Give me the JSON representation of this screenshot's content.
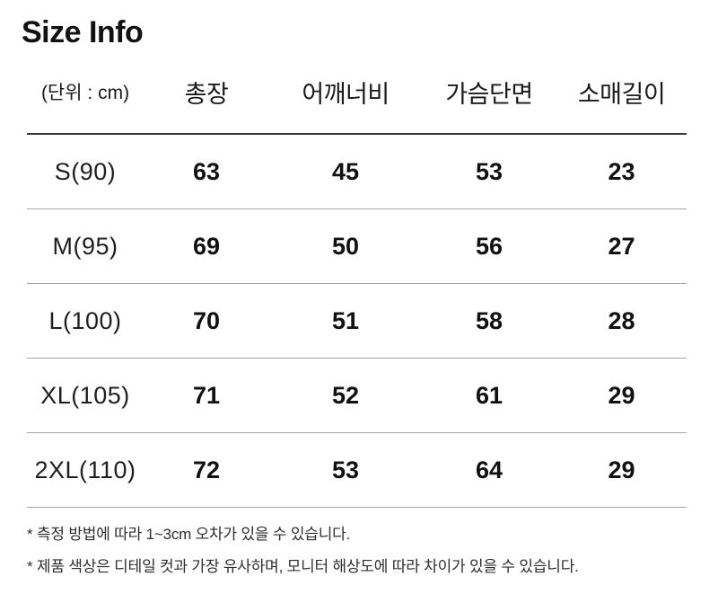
{
  "page": {
    "title": "Size Info"
  },
  "table": {
    "unit_label": "(단위 : cm)",
    "columns": [
      "총장",
      "어깨너비",
      "가슴단면",
      "소매길이"
    ],
    "rows": [
      {
        "size": "S(90)",
        "values": [
          "63",
          "45",
          "53",
          "23"
        ]
      },
      {
        "size": "M(95)",
        "values": [
          "69",
          "50",
          "56",
          "27"
        ]
      },
      {
        "size": "L(100)",
        "values": [
          "70",
          "51",
          "58",
          "28"
        ]
      },
      {
        "size": "XL(105)",
        "values": [
          "71",
          "52",
          "61",
          "29"
        ]
      },
      {
        "size": "2XL(110)",
        "values": [
          "72",
          "53",
          "64",
          "29"
        ]
      }
    ]
  },
  "notes": [
    "* 측정 방법에 따라 1~3cm 오차가 있을 수 있습니다.",
    "* 제품 색상은 디테일 컷과 가장 유사하며, 모니터 해상도에 따라 차이가 있을 수 있습니다."
  ],
  "colors": {
    "text": "#111111",
    "header_rule": "#3a3a3a",
    "row_rule": "#a6a6a6",
    "background": "#ffffff"
  }
}
